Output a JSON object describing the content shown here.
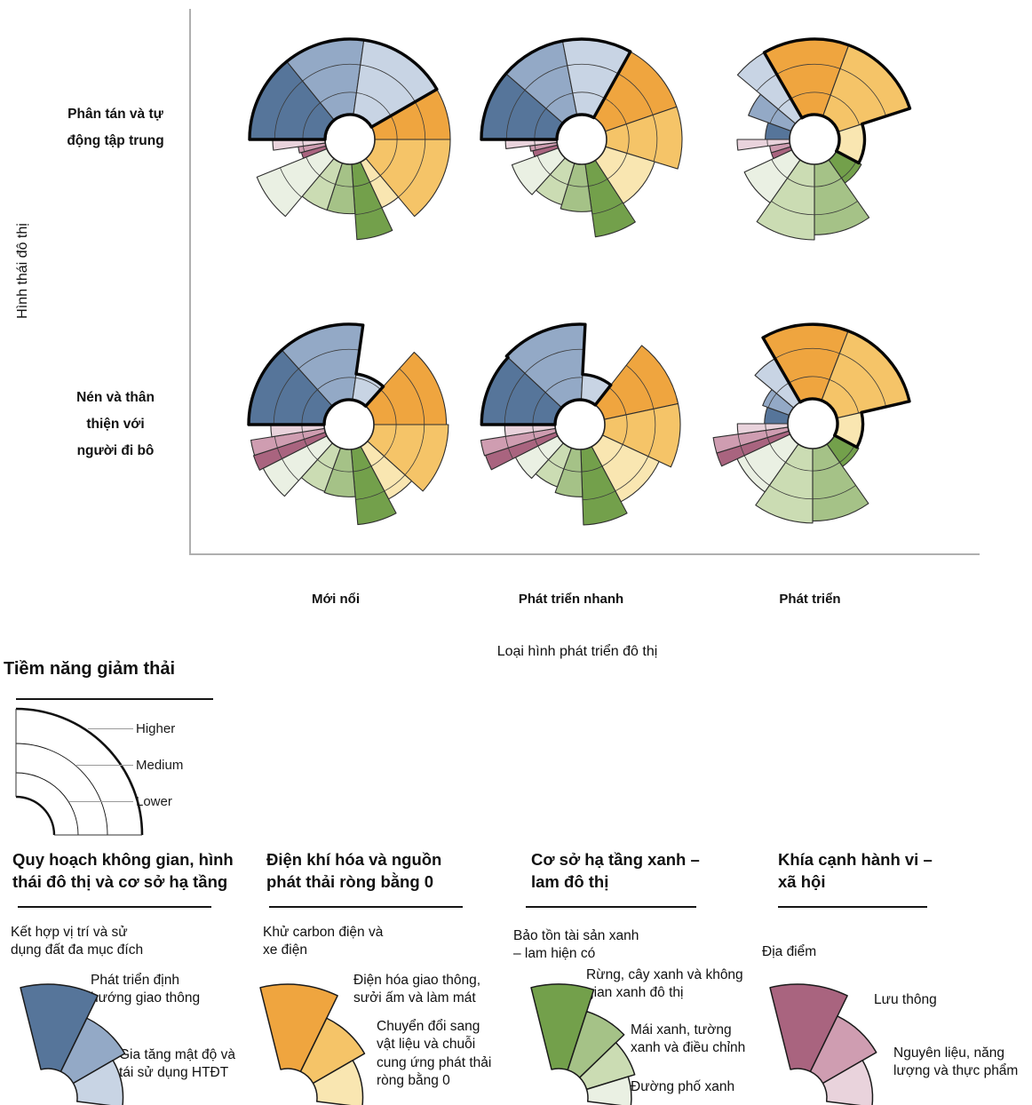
{
  "axes": {
    "y_axis_label": "Hình thái đô thị",
    "x_axis_label": "Loại hình phát triển đô thị",
    "row_labels": [
      "Phân tán và tự\nđộng tập trung",
      "Nén và thân\nthiện với\nngười đi bô"
    ],
    "col_labels": [
      "Mới nổi",
      "Phát triển nhanh",
      "Phát triển"
    ]
  },
  "ring_legend": {
    "title": "Tiềm năng giảm thải",
    "rings": [
      {
        "label": "Higher",
        "level": 1.0
      },
      {
        "label": "Medium",
        "level": 0.75
      },
      {
        "label": "Lower",
        "level": 0.47
      }
    ]
  },
  "legend_groups": [
    {
      "id": "spatial",
      "title": "Quy hoạch không gian, hình\nthái đô thị và cơ sở hạ tầng",
      "items": [
        "Kết hợp vị trí và sử\ndụng đất đa mục đích",
        "Phát triển định\nhướng giao thông",
        "Gia tăng mật độ và\ntái sử dụng HTĐT"
      ]
    },
    {
      "id": "energy",
      "title": "Điện khí hóa và nguồn\nphát thải ròng bằng 0",
      "items": [
        "Khử carbon điện và\nxe điện",
        "Điện hóa giao thông,\nsưởi ấm và làm mát",
        "Chuyển đổi sang\nvật liệu và chuỗi\ncung ứng phát thải\nròng bằng 0"
      ]
    },
    {
      "id": "green",
      "title": "Cơ sở hạ tầng xanh –\nlam đô thị",
      "items": [
        "Bảo tồn tài sản xanh\n– lam hiện có",
        "Rừng, cây xanh và không\ngian xanh đô thị",
        "Mái xanh, tường\nxanh và điều chỉnh",
        "Đường phố xanh"
      ]
    },
    {
      "id": "social",
      "title": "Khía cạnh hành vi –\nxã hội",
      "items": [
        "Địa điểm",
        "Lưu thông",
        "Nguyên liệu, năng\nlượng và thực phẩm"
      ]
    }
  ],
  "chart_data": {
    "type": "pie",
    "subtype": "rose-fan / coxcomb matrix; wedge radius encodes mitigation potential",
    "potential_levels": {
      "Lower": 0.47,
      "Medium": 0.75,
      "Higher": 1.0
    },
    "rows": [
      "Phân tán và tự động tập trung",
      "Nén và thân thiện với người đi bô"
    ],
    "cols": [
      "Mới nổi",
      "Phát triển nhanh",
      "Phát triển"
    ],
    "wedges": [
      {
        "group": "spatial",
        "label": "Kết hợp vị trí và sử dụng đất đa mục đích",
        "color": "#56759a"
      },
      {
        "group": "spatial",
        "label": "Phát triển định hướng giao thông",
        "color": "#93a9c6"
      },
      {
        "group": "spatial",
        "label": "Gia tăng mật độ và tái sử dụng HTĐT",
        "color": "#c8d4e4"
      },
      {
        "group": "energy",
        "label": "Khử carbon điện và xe điện",
        "color": "#efa53f"
      },
      {
        "group": "energy",
        "label": "Điện hóa giao thông, sưởi ấm và làm mát",
        "color": "#f5c468"
      },
      {
        "group": "energy",
        "label": "Chuyển đổi sang vật liệu và chuỗi cung ứng phát thải ròng bằng 0",
        "color": "#f9e6b1"
      },
      {
        "group": "green",
        "label": "Bảo tồn tài sản xanh – lam hiện có",
        "color": "#73a04b"
      },
      {
        "group": "green",
        "label": "Rừng, cây xanh và không gian xanh đô thị",
        "color": "#a5c287"
      },
      {
        "group": "green",
        "label": "Mái xanh, tường xanh và điều chỉnh",
        "color": "#cbdcb3"
      },
      {
        "group": "green",
        "label": "Đường phố xanh",
        "color": "#eaf0e3"
      },
      {
        "group": "social",
        "label": "Địa điểm",
        "color": "#a9647f"
      },
      {
        "group": "social",
        "label": "Lưu thông",
        "color": "#cf9db1"
      },
      {
        "group": "social",
        "label": "Nguyên liệu, năng lượng và thực phẩm",
        "color": "#e9d3dc"
      }
    ],
    "charts": [
      {
        "row": 0,
        "col": 0,
        "highlight": "spatial",
        "bounds": [
          -90,
          -39,
          8,
          60,
          90,
          140,
          155,
          176,
          198,
          220,
          248,
          255,
          262,
          270
        ],
        "r": [
          1,
          1,
          1,
          1,
          1,
          0.75,
          1,
          0.74,
          0.74,
          1,
          0.5,
          0.52,
          0.77
        ]
      },
      {
        "row": 0,
        "col": 1,
        "highlight": "spatial",
        "bounds": [
          -90,
          -49,
          -11,
          29,
          71,
          107,
          147,
          172,
          197,
          222,
          250,
          257,
          263,
          270
        ],
        "r": [
          1,
          1,
          1,
          1,
          1,
          0.76,
          0.98,
          0.72,
          0.68,
          0.74,
          0.5,
          0.52,
          0.76
        ]
      },
      {
        "row": 0,
        "col": 2,
        "highlight": "energy",
        "bounds": [
          -90,
          -70,
          -50,
          -30,
          20,
          72,
          118,
          145,
          180,
          215,
          245,
          253,
          262,
          270
        ],
        "r": [
          0.49,
          0.7,
          1,
          1,
          1,
          0.5,
          0.53,
          0.95,
          1,
          0.77,
          0.45,
          0.45,
          0.77
        ]
      },
      {
        "row": 1,
        "col": 0,
        "highlight": "spatial",
        "bounds": [
          -90,
          -42,
          8,
          42,
          90,
          132,
          152,
          175,
          200,
          222,
          243,
          252,
          261,
          270
        ],
        "r": [
          1,
          1,
          0.51,
          0.97,
          0.99,
          0.84,
          1,
          0.72,
          0.71,
          0.96,
          1,
          0.99,
          0.78
        ]
      },
      {
        "row": 1,
        "col": 1,
        "highlight": "spatial",
        "bounds": [
          -90,
          -47,
          3,
          38,
          78,
          115,
          152,
          178,
          200,
          222,
          243,
          252,
          261,
          270
        ],
        "r": [
          0.98,
          1,
          0.5,
          1,
          1,
          0.87,
          1,
          0.72,
          0.66,
          0.72,
          0.99,
          1,
          0.75
        ]
      },
      {
        "row": 1,
        "col": 2,
        "highlight": "energy",
        "bounds": [
          -90,
          -70,
          -50,
          -30,
          21,
          77,
          118,
          145,
          180,
          215,
          245,
          253,
          262,
          270
        ],
        "r": [
          0.48,
          0.53,
          0.75,
          0.99,
          0.99,
          0.5,
          0.52,
          0.97,
          0.99,
          0.83,
          1,
          1,
          0.75
        ]
      }
    ]
  }
}
